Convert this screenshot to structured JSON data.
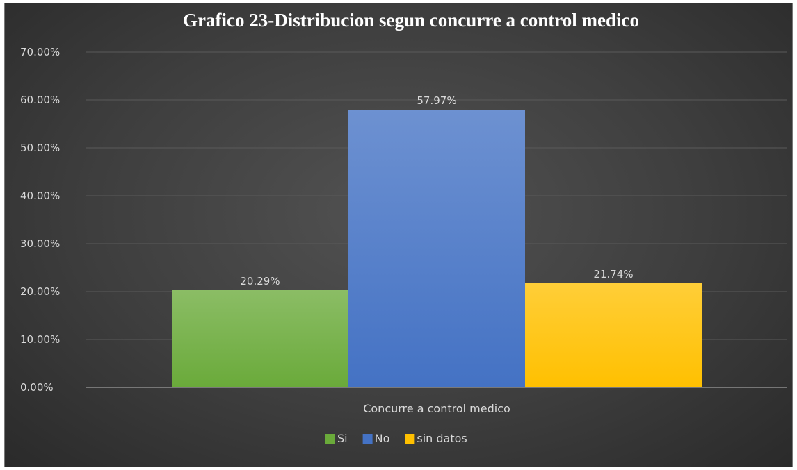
{
  "chart_data": {
    "type": "bar",
    "title": "Grafico 23-Distribucion segun concurre a control medico",
    "categories": [
      "Concurre a control medico"
    ],
    "series": [
      {
        "name": "Si",
        "values": [
          20.29
        ],
        "label": "20.29%",
        "color": "#6aaa3a"
      },
      {
        "name": "No",
        "values": [
          57.97
        ],
        "label": "57.97%",
        "color": "#4472c4"
      },
      {
        "name": "sin datos",
        "values": [
          21.74
        ],
        "label": "21.74%",
        "color": "#ffc000"
      }
    ],
    "yticks": [
      "0.00%",
      "10.00%",
      "20.00%",
      "30.00%",
      "40.00%",
      "50.00%",
      "60.00%",
      "70.00%"
    ],
    "ylim": [
      0,
      70
    ],
    "ylabel": "",
    "xlabel": "",
    "grid": true,
    "legend_position": "bottom"
  }
}
